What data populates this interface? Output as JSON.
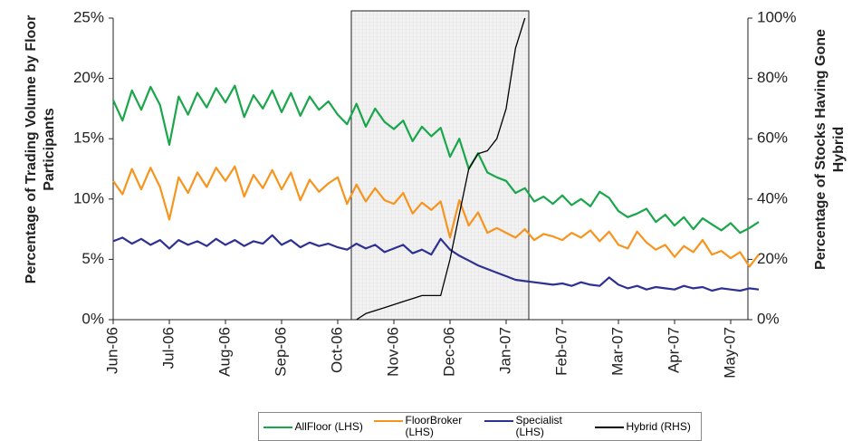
{
  "chart_data": {
    "type": "line",
    "ylabel": "Percentage of Trading Volume by Floor Participants",
    "y2label": "Percentage of Stocks Having Gone Hybrid",
    "categories": [
      "Jun-06",
      null,
      null,
      null,
      null,
      null,
      "Jul-06",
      null,
      null,
      null,
      null,
      null,
      "Aug-06",
      null,
      null,
      null,
      null,
      null,
      "Sep-06",
      null,
      null,
      null,
      null,
      null,
      "Oct-06",
      null,
      null,
      null,
      null,
      null,
      "Nov-06",
      null,
      null,
      null,
      null,
      null,
      "Dec-06",
      null,
      null,
      null,
      null,
      null,
      "Jan-07",
      null,
      null,
      null,
      null,
      null,
      "Feb-07",
      null,
      null,
      null,
      null,
      null,
      "Mar-07",
      null,
      null,
      null,
      null,
      null,
      "Apr-07",
      null,
      null,
      null,
      null,
      null,
      "May-07",
      null,
      null,
      null
    ],
    "series": [
      {
        "name": "AllFloor (LHS)",
        "color": "#1aa64a",
        "values": [
          18.2,
          16.5,
          19.0,
          17.4,
          19.3,
          17.8,
          14.5,
          18.5,
          17.0,
          18.8,
          17.6,
          19.2,
          18.0,
          19.4,
          16.8,
          18.6,
          17.5,
          19.0,
          17.2,
          18.8,
          16.9,
          18.5,
          17.4,
          18.1,
          17.0,
          16.2,
          17.9,
          16.0,
          17.5,
          16.4,
          15.8,
          16.5,
          14.8,
          16.0,
          15.2,
          15.9,
          13.5,
          15.0,
          12.5,
          13.8,
          12.2,
          11.8,
          11.5,
          10.5,
          10.9,
          9.8,
          10.2,
          9.6,
          10.3,
          9.5,
          10.0,
          9.4,
          10.6,
          10.1,
          9.0,
          8.5,
          8.8,
          9.2,
          8.1,
          8.7,
          7.8,
          8.5,
          7.5,
          8.4,
          7.9,
          7.4,
          8.0,
          7.2,
          7.6,
          8.1
        ]
      },
      {
        "name": "FloorBroker (LHS)",
        "color": "#f7941d",
        "values": [
          11.5,
          10.4,
          12.5,
          10.8,
          12.6,
          11.0,
          8.3,
          11.8,
          10.5,
          12.2,
          11.0,
          12.6,
          11.5,
          12.7,
          10.2,
          12.0,
          10.9,
          12.4,
          10.8,
          12.2,
          9.9,
          11.6,
          10.6,
          11.3,
          11.8,
          9.6,
          11.2,
          9.8,
          10.9,
          9.9,
          9.6,
          10.5,
          8.8,
          9.7,
          9.1,
          9.8,
          6.8,
          9.9,
          7.8,
          8.9,
          7.2,
          7.6,
          7.2,
          6.8,
          7.5,
          6.6,
          7.1,
          6.9,
          6.6,
          7.2,
          6.8,
          7.4,
          6.5,
          7.3,
          6.2,
          5.9,
          7.3,
          6.4,
          5.8,
          6.2,
          5.2,
          6.1,
          5.6,
          6.6,
          5.4,
          5.7,
          5.1,
          5.6,
          4.4,
          5.4
        ]
      },
      {
        "name": "Specialist (LHS)",
        "color": "#2e3192",
        "values": [
          6.5,
          6.8,
          6.3,
          6.7,
          6.2,
          6.6,
          5.9,
          6.6,
          6.2,
          6.5,
          6.1,
          6.7,
          6.2,
          6.6,
          6.1,
          6.5,
          6.3,
          7.0,
          6.2,
          6.6,
          6.0,
          6.4,
          6.1,
          6.3,
          6.0,
          5.8,
          6.3,
          5.9,
          6.2,
          5.6,
          5.9,
          6.2,
          5.5,
          5.8,
          5.4,
          6.7,
          5.8,
          5.3,
          4.9,
          4.5,
          4.2,
          3.9,
          3.6,
          3.3,
          3.2,
          3.1,
          3.0,
          2.9,
          3.0,
          2.8,
          3.1,
          2.9,
          2.8,
          3.5,
          2.9,
          2.6,
          2.8,
          2.5,
          2.7,
          2.6,
          2.5,
          2.8,
          2.6,
          2.7,
          2.4,
          2.6,
          2.5,
          2.4,
          2.6,
          2.5
        ]
      },
      {
        "name": "Hybrid (RHS)",
        "color": "#000000",
        "axis": "y2",
        "values": [
          null,
          null,
          null,
          null,
          null,
          null,
          null,
          null,
          null,
          null,
          null,
          null,
          null,
          null,
          null,
          null,
          null,
          null,
          null,
          null,
          null,
          null,
          null,
          null,
          null,
          null,
          0,
          2,
          3,
          4,
          5,
          6,
          7,
          8,
          8,
          8,
          20,
          35,
          50,
          55,
          56,
          60,
          70,
          90,
          100,
          null,
          null,
          null,
          null,
          null,
          null,
          null,
          null,
          null,
          null,
          null,
          null,
          null,
          null,
          null,
          null,
          null,
          null,
          null,
          null,
          null,
          null,
          null,
          null,
          null
        ]
      }
    ],
    "ylim": [
      0,
      25
    ],
    "yticks": [
      {
        "value": 0,
        "label": "0%"
      },
      {
        "value": 5,
        "label": "5%"
      },
      {
        "value": 10,
        "label": "10%"
      },
      {
        "value": 15,
        "label": "15%"
      },
      {
        "value": 20,
        "label": "20%"
      },
      {
        "value": 25,
        "label": "25%"
      }
    ],
    "y2lim": [
      0,
      100
    ],
    "y2ticks": [
      {
        "value": 0,
        "label": "0%"
      },
      {
        "value": 20,
        "label": "20%"
      },
      {
        "value": 40,
        "label": "40%"
      },
      {
        "value": 60,
        "label": "60%"
      },
      {
        "value": 80,
        "label": "80%"
      },
      {
        "value": 100,
        "label": "100%"
      }
    ],
    "grid": false,
    "legend": "bottom"
  }
}
